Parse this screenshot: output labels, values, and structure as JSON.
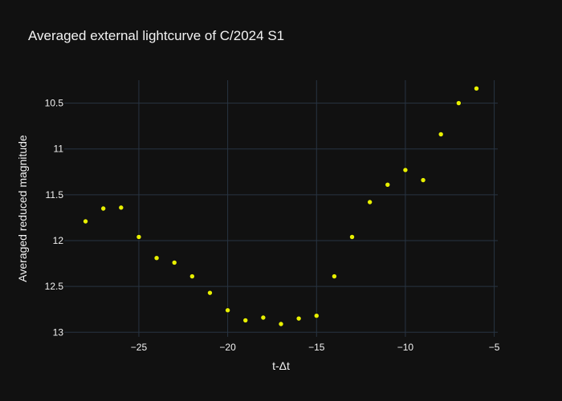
{
  "chart_data": {
    "type": "scatter",
    "title": "Averaged external lightcurve of C/2024 S1",
    "xlabel": "t-Δt",
    "ylabel": "Averaged reduced magnitude",
    "xlim": [
      -29.2,
      -4.8
    ],
    "ylim": [
      13.05,
      10.25
    ],
    "y_axis_reversed": true,
    "grid": true,
    "x_ticks": [
      -25,
      -20,
      -15,
      -10,
      -5
    ],
    "x_tick_labels": [
      "−25",
      "−20",
      "−15",
      "−10",
      "−5"
    ],
    "y_ticks": [
      10.5,
      11,
      11.5,
      12,
      12.5,
      13
    ],
    "y_tick_labels": [
      "10.5",
      "11",
      "11.5",
      "12",
      "12.5",
      "13"
    ],
    "marker_color": "#e8f000",
    "background": "#111111",
    "grid_color": "#283442",
    "series": [
      {
        "x": [
          -28,
          -27,
          -26,
          -25,
          -24,
          -23,
          -22,
          -21,
          -20,
          -19,
          -18,
          -17,
          -16,
          -15,
          -14,
          -13,
          -12,
          -11,
          -10,
          -9,
          -8,
          -7,
          -6
        ],
        "y": [
          11.79,
          11.65,
          11.64,
          11.96,
          12.19,
          12.24,
          12.39,
          12.57,
          12.76,
          12.87,
          12.84,
          12.91,
          12.85,
          12.82,
          12.39,
          11.96,
          11.58,
          11.39,
          11.23,
          11.34,
          10.84,
          10.5,
          10.34
        ]
      }
    ]
  }
}
